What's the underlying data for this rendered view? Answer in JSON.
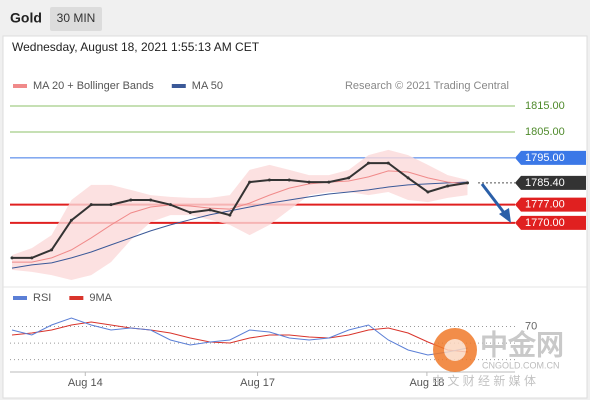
{
  "header": {
    "title": "Gold",
    "timeframe": "30 MIN"
  },
  "timestamp": "Wednesday, August 18, 2021 1:55:13 AM CET",
  "copyright": "Research © 2021 Trading Central",
  "watermark": {
    "name": "中金网",
    "site": "CNGOLD.COM.CN",
    "slogan": "中 文 财 经 新 媒 体"
  },
  "chart_data": [
    {
      "type": "line",
      "x": [
        0,
        2,
        4,
        6,
        8,
        10,
        12,
        14,
        16,
        18,
        20,
        22,
        24,
        26,
        28,
        30,
        32,
        34,
        36,
        38,
        40,
        42,
        44,
        46
      ],
      "xlim": [
        0,
        51
      ],
      "ylim": [
        1748,
        1820
      ],
      "series": [
        {
          "color": "#333333",
          "values": [
            1756.5,
            1756.5,
            1759.6,
            1771,
            1777,
            1777,
            1778.8,
            1778.8,
            1777,
            1774,
            1775,
            1773,
            1785.7,
            1786.5,
            1786.5,
            1785.7,
            1785.7,
            1787.3,
            1793,
            1793,
            1787.3,
            1781.9,
            1784.2,
            1785.4
          ]
        },
        {
          "name": "MA 20 + Bollinger Bands",
          "color": "#f08a8a",
          "band_color": "#fbd9d9",
          "values": [
            1754.9,
            1754.9,
            1756.5,
            1759.6,
            1764.2,
            1769.2,
            1773.8,
            1776.1,
            1776.9,
            1776.5,
            1775.7,
            1775.3,
            1777.6,
            1780.7,
            1783.4,
            1785,
            1785.7,
            1786.1,
            1787.7,
            1790,
            1789.6,
            1787.3,
            1785.7,
            1785
          ],
          "band_upper": [
            1757.6,
            1760.3,
            1765.3,
            1778.8,
            1784.6,
            1784.6,
            1782.7,
            1780.7,
            1780,
            1779.6,
            1779.6,
            1780.7,
            1790.4,
            1792.3,
            1790.4,
            1788.4,
            1788.4,
            1790.4,
            1796.1,
            1798.1,
            1796.1,
            1792.3,
            1788.4,
            1786.5
          ],
          "band_lower": [
            1751.9,
            1751.1,
            1749.9,
            1748,
            1749.9,
            1754.9,
            1763.4,
            1770.3,
            1773,
            1773,
            1771.2,
            1769.2,
            1765.3,
            1769.2,
            1775,
            1780.7,
            1781.9,
            1781.9,
            1780.7,
            1781.9,
            1778.8,
            1778,
            1779.6,
            1780.7
          ]
        },
        {
          "name": "MA 50",
          "color": "#3b5998",
          "values": [
            1752.6,
            1753.8,
            1754.6,
            1756.5,
            1758.8,
            1761.5,
            1764.2,
            1766.9,
            1769.2,
            1771.2,
            1773.1,
            1774.6,
            1776.1,
            1777.6,
            1778.8,
            1780,
            1781.1,
            1781.9,
            1782.7,
            1783.8,
            1784.6,
            1785,
            1785.4,
            1785.7
          ]
        }
      ],
      "levels": [
        {
          "value": 1815,
          "label": "1815.00",
          "color": "#8cc06a",
          "text_color": "#4f8a2b",
          "boxed": false,
          "dotted": false
        },
        {
          "value": 1805,
          "label": "1805.00",
          "color": "#8cc06a",
          "text_color": "#4f8a2b",
          "boxed": false,
          "dotted": false
        },
        {
          "value": 1795,
          "label": "1795.00",
          "color": "#3b78e7",
          "text_color": "#ffffff",
          "boxed": true,
          "dotted": false
        },
        {
          "value": 1785.4,
          "label": "1785.40",
          "color": "#333333",
          "text_color": "#ffffff",
          "boxed": true,
          "dotted": true
        },
        {
          "value": 1777,
          "label": "1777.00",
          "color": "#e02020",
          "text_color": "#ffffff",
          "boxed": true,
          "dotted": false
        },
        {
          "value": 1770,
          "label": "1770.00",
          "color": "#e02020",
          "text_color": "#ffffff",
          "boxed": true,
          "dotted": false
        }
      ]
    },
    {
      "type": "line",
      "x": [
        0,
        2,
        4,
        6,
        8,
        10,
        12,
        14,
        16,
        18,
        20,
        22,
        24,
        26,
        28,
        30,
        32,
        34,
        36,
        38,
        40,
        42,
        44,
        46
      ],
      "xlim": [
        0,
        51
      ],
      "xticks": [
        {
          "value": 7.4,
          "label": "Aug 14"
        },
        {
          "value": 24.8,
          "label": "Aug 17"
        },
        {
          "value": 41.9,
          "label": "Aug 18"
        }
      ],
      "ylim": [
        15,
        90
      ],
      "yticks": [
        70
      ],
      "grid_levels": [
        30,
        50,
        70
      ],
      "series": [
        {
          "name": "RSI",
          "color": "#5b7fd6",
          "values": [
            65.8,
            59.8,
            71.9,
            80.3,
            71.9,
            65.8,
            68.2,
            65.8,
            53.7,
            47.7,
            51.3,
            53.7,
            65.8,
            63.4,
            56.1,
            53.7,
            56.1,
            65.8,
            71.9,
            53.7,
            41.6,
            35.6,
            39.2,
            44
          ]
        },
        {
          "name": "9MA",
          "color": "#d9342b",
          "values": [
            59.8,
            62.2,
            65.8,
            71.9,
            75.5,
            71.9,
            68.2,
            65.8,
            62.2,
            56.1,
            51.3,
            50.1,
            56.1,
            59.8,
            59.8,
            57.3,
            56.1,
            59.8,
            65.8,
            68.2,
            62.2,
            51.3,
            41.6,
            39.2
          ]
        }
      ]
    }
  ]
}
